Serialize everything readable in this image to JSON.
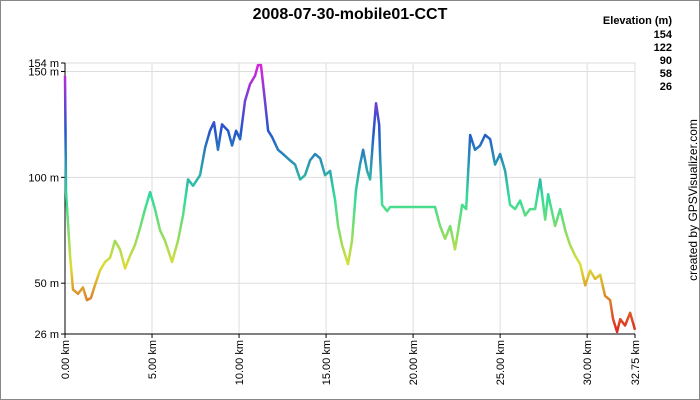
{
  "chart_data": {
    "type": "line",
    "title": "2008-07-30-mobile01-CCT",
    "credit": "created by GPSVisualizer.com",
    "legend": {
      "title": "Elevation (m)",
      "entries": [
        {
          "value": 154,
          "color": "#dd22dd"
        },
        {
          "value": 122,
          "color": "#2255cc"
        },
        {
          "value": 90,
          "color": "#33dd99"
        },
        {
          "value": 58,
          "color": "#dddd33"
        },
        {
          "value": 26,
          "color": "#dd2222"
        }
      ]
    },
    "x": [
      0,
      0.06,
      0.29,
      0.46,
      0.75,
      1.03,
      1.26,
      1.49,
      1.72,
      2.01,
      2.3,
      2.59,
      2.87,
      3.16,
      3.45,
      3.74,
      4.02,
      4.31,
      4.6,
      4.89,
      5.17,
      5.46,
      5.75,
      6.15,
      6.49,
      6.78,
      7.07,
      7.36,
      7.76,
      8.05,
      8.33,
      8.56,
      8.79,
      9.02,
      9.37,
      9.6,
      9.83,
      10.06,
      10.34,
      10.63,
      10.92,
      11.09,
      11.26,
      11.49,
      11.67,
      11.9,
      12.24,
      12.53,
      12.93,
      13.22,
      13.51,
      13.79,
      14.08,
      14.37,
      14.66,
      14.94,
      15.23,
      15.52,
      15.69,
      15.92,
      16.26,
      16.49,
      16.72,
      16.95,
      17.13,
      17.36,
      17.53,
      17.7,
      17.87,
      18.05,
      18.1,
      18.22,
      18.51,
      18.68,
      21.26,
      21.55,
      21.84,
      22.13,
      22.41,
      22.59,
      22.82,
      23.05,
      23.28,
      23.56,
      23.85,
      24.14,
      24.43,
      24.71,
      25.0,
      25.29,
      25.57,
      25.86,
      26.15,
      26.44,
      26.72,
      27.01,
      27.3,
      27.59,
      27.76,
      28.16,
      28.45,
      28.74,
      29.02,
      29.31,
      29.6,
      29.89,
      30.17,
      30.46,
      30.75,
      31.03,
      31.32,
      31.49,
      31.72,
      31.9,
      32.18,
      32.47,
      32.75
    ],
    "series": [
      {
        "name": "Elevation",
        "values": [
          148,
          93,
          63,
          47,
          45,
          48,
          42,
          43,
          49,
          56,
          60,
          62,
          70,
          66,
          57,
          63,
          68,
          76,
          85,
          93,
          85,
          75,
          70,
          60,
          70,
          82,
          99,
          96,
          101,
          114,
          122,
          126,
          113,
          125,
          122,
          115,
          122,
          118,
          136,
          144,
          148,
          153,
          153,
          136,
          122,
          119,
          113,
          111,
          108,
          106,
          99,
          101,
          108,
          111,
          109,
          101,
          103,
          89,
          77,
          68,
          59,
          70,
          94,
          106,
          113,
          103,
          99,
          118,
          135,
          125,
          111,
          87,
          84,
          86,
          86,
          77,
          71,
          77,
          66,
          75,
          87,
          85,
          120,
          113,
          115,
          120,
          118,
          106,
          111,
          103,
          87,
          85,
          89,
          82,
          85,
          85,
          99,
          80,
          92,
          77,
          85,
          75,
          68,
          63,
          59,
          49,
          56,
          52,
          54,
          44,
          42,
          33,
          27,
          33,
          30,
          36,
          28
        ]
      }
    ],
    "xlim": [
      0,
      32.75
    ],
    "ylim": [
      26,
      154
    ],
    "xticks": [
      {
        "value": 0,
        "label": "0.00 km"
      },
      {
        "value": 5,
        "label": "5.00 km"
      },
      {
        "value": 10,
        "label": "10.00 km"
      },
      {
        "value": 15,
        "label": "15.00 km"
      },
      {
        "value": 20,
        "label": "20.00 km"
      },
      {
        "value": 25,
        "label": "25.00 km"
      },
      {
        "value": 30,
        "label": "30.00 km"
      },
      {
        "value": 32.75,
        "label": "32.75 km"
      }
    ],
    "yticks": [
      {
        "value": 26,
        "label": "26 m"
      },
      {
        "value": 50,
        "label": "50 m"
      },
      {
        "value": 100,
        "label": "100 m"
      },
      {
        "value": 150,
        "label": "150 m"
      },
      {
        "value": 154,
        "label": "154 m"
      }
    ],
    "grid": true
  }
}
